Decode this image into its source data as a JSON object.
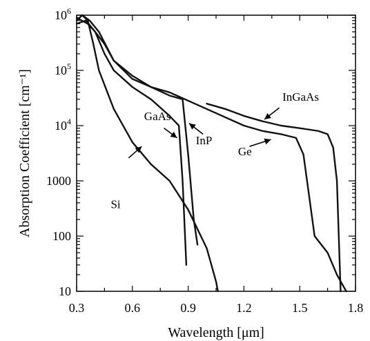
{
  "chart_data": {
    "type": "line",
    "title": "",
    "xlabel": "Wavelength [μm]",
    "ylabel": "Absorption Coefficient [cm⁻¹]",
    "xlim": [
      0.3,
      1.8
    ],
    "ylim": [
      10,
      1000000
    ],
    "yscale": "log",
    "grid": false,
    "legend": "none",
    "x_ticks": [
      {
        "value": 0.3,
        "label": "0.3"
      },
      {
        "value": 0.6,
        "label": "0.6"
      },
      {
        "value": 0.9,
        "label": "0.9"
      },
      {
        "value": 1.2,
        "label": "1.2"
      },
      {
        "value": 1.5,
        "label": "1.5"
      },
      {
        "value": 1.8,
        "label": "1.8"
      }
    ],
    "y_ticks": [
      {
        "value": 10,
        "label": "10"
      },
      {
        "value": 100,
        "label": "100"
      },
      {
        "value": 1000,
        "label": "1000"
      },
      {
        "value": 10000,
        "label": "10",
        "exp": "4"
      },
      {
        "value": 100000,
        "label": "10",
        "exp": "5"
      },
      {
        "value": 1000000,
        "label": "10",
        "exp": "6"
      }
    ],
    "series": [
      {
        "name": "Si",
        "x": [
          0.33,
          0.36,
          0.39,
          0.42,
          0.5,
          0.6,
          0.7,
          0.8,
          0.9,
          1.0,
          1.05,
          1.06
        ],
        "y": [
          1000000,
          800000,
          300000,
          100000,
          20000,
          5000,
          2000,
          1000,
          300,
          60,
          15,
          10
        ]
      },
      {
        "name": "GaAs",
        "x": [
          0.3,
          0.35,
          0.4,
          0.45,
          0.5,
          0.6,
          0.7,
          0.8,
          0.85,
          0.87,
          0.89
        ],
        "y": [
          700000,
          800000,
          500000,
          200000,
          100000,
          50000,
          30000,
          15000,
          10000,
          1000,
          30
        ]
      },
      {
        "name": "InP",
        "x": [
          0.3,
          0.36,
          0.4,
          0.45,
          0.5,
          0.6,
          0.7,
          0.8,
          0.87,
          0.9,
          0.93,
          0.95
        ],
        "y": [
          900000,
          700000,
          500000,
          300000,
          150000,
          80000,
          50000,
          35000,
          30000,
          3000,
          200,
          70
        ]
      },
      {
        "name": "Ge",
        "x": [
          0.3,
          0.33,
          0.37,
          0.42,
          0.5,
          0.6,
          0.7,
          0.8,
          1.0,
          1.2,
          1.3,
          1.4,
          1.48,
          1.52,
          1.58,
          1.65,
          1.7,
          1.75
        ],
        "y": [
          800000,
          1000000,
          800000,
          500000,
          150000,
          70000,
          50000,
          40000,
          20000,
          10000,
          8000,
          7000,
          6000,
          3000,
          100,
          50,
          20,
          10
        ]
      },
      {
        "name": "InGaAs",
        "x": [
          1.0,
          1.1,
          1.2,
          1.3,
          1.4,
          1.5,
          1.6,
          1.65,
          1.68,
          1.7,
          1.72
        ],
        "y": [
          25000,
          20000,
          15000,
          12000,
          10000,
          9000,
          8000,
          7000,
          4000,
          1000,
          10
        ]
      }
    ],
    "annotations": [
      {
        "text": "Si",
        "series": "Si"
      },
      {
        "text": "GaAs",
        "series": "GaAs"
      },
      {
        "text": "InP",
        "series": "InP"
      },
      {
        "text": "Ge",
        "series": "Ge"
      },
      {
        "text": "InGaAs",
        "series": "InGaAs"
      }
    ]
  }
}
